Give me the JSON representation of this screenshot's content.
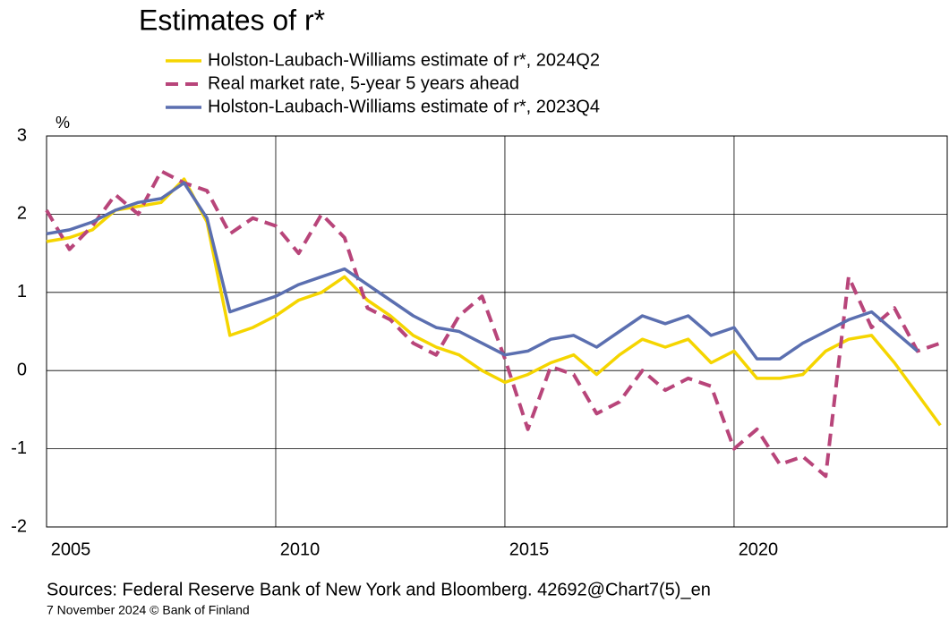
{
  "chart_data": {
    "type": "line",
    "title": "Estimates of r*",
    "y_unit": "%",
    "x": [
      2005,
      2005.5,
      2006,
      2006.5,
      2007,
      2007.5,
      2008,
      2008.5,
      2009,
      2009.5,
      2010,
      2010.5,
      2011,
      2011.5,
      2012,
      2012.5,
      2013,
      2013.5,
      2014,
      2014.5,
      2015,
      2015.5,
      2016,
      2016.5,
      2017,
      2017.5,
      2018,
      2018.5,
      2019,
      2019.5,
      2020,
      2020.5,
      2021,
      2021.5,
      2022,
      2022.5,
      2023,
      2023.5,
      2024,
      2024.5
    ],
    "series": [
      {
        "name": "Holston-Laubach-Williams estimate of r*, 2024Q2",
        "color": "#f5d500",
        "dash": false,
        "values": [
          1.65,
          1.7,
          1.8,
          2.05,
          2.1,
          2.15,
          2.45,
          1.9,
          0.45,
          0.55,
          0.7,
          0.9,
          1.0,
          1.2,
          0.9,
          0.7,
          0.45,
          0.3,
          0.2,
          0.0,
          -0.15,
          -0.05,
          0.1,
          0.2,
          -0.05,
          0.2,
          0.4,
          0.3,
          0.4,
          0.1,
          0.25,
          -0.1,
          -0.1,
          -0.05,
          0.25,
          0.4,
          0.45,
          0.1,
          -0.3,
          -0.7
        ]
      },
      {
        "name": "Real market rate, 5-year 5 years ahead",
        "color": "#b8457a",
        "dash": true,
        "values": [
          2.05,
          1.55,
          1.85,
          2.25,
          2.0,
          2.55,
          2.4,
          2.3,
          1.75,
          1.95,
          1.85,
          1.5,
          2.0,
          1.7,
          0.8,
          0.65,
          0.35,
          0.2,
          0.7,
          0.95,
          0.15,
          -0.75,
          0.05,
          -0.05,
          -0.55,
          -0.4,
          0.0,
          -0.25,
          -0.1,
          -0.2,
          -1.0,
          -0.75,
          -1.2,
          -1.1,
          -1.35,
          1.2,
          0.55,
          0.8,
          0.25,
          0.35
        ]
      },
      {
        "name": "Holston-Laubach-Williams estimate of r*, 2023Q4",
        "color": "#5b6fb0",
        "dash": false,
        "values": [
          1.75,
          1.8,
          1.9,
          2.05,
          2.15,
          2.2,
          2.4,
          1.95,
          0.75,
          0.85,
          0.95,
          1.1,
          1.2,
          1.3,
          1.1,
          0.9,
          0.7,
          0.55,
          0.5,
          0.35,
          0.2,
          0.25,
          0.4,
          0.45,
          0.3,
          0.5,
          0.7,
          0.6,
          0.7,
          0.45,
          0.55,
          0.15,
          0.15,
          0.35,
          0.5,
          0.65,
          0.75,
          0.5,
          0.25,
          null
        ]
      }
    ],
    "xlim": [
      2005,
      2024.65
    ],
    "xticks": [
      2005,
      2010,
      2015,
      2020
    ],
    "ylim": [
      -2,
      3
    ],
    "yticks": [
      -2,
      -1,
      0,
      1,
      2,
      3
    ],
    "grid": true,
    "sources": "Sources: Federal Reserve Bank of New York and Bloomberg. 42692@Chart7(5)_en",
    "footer": "7 November 2024  © Bank of Finland"
  }
}
